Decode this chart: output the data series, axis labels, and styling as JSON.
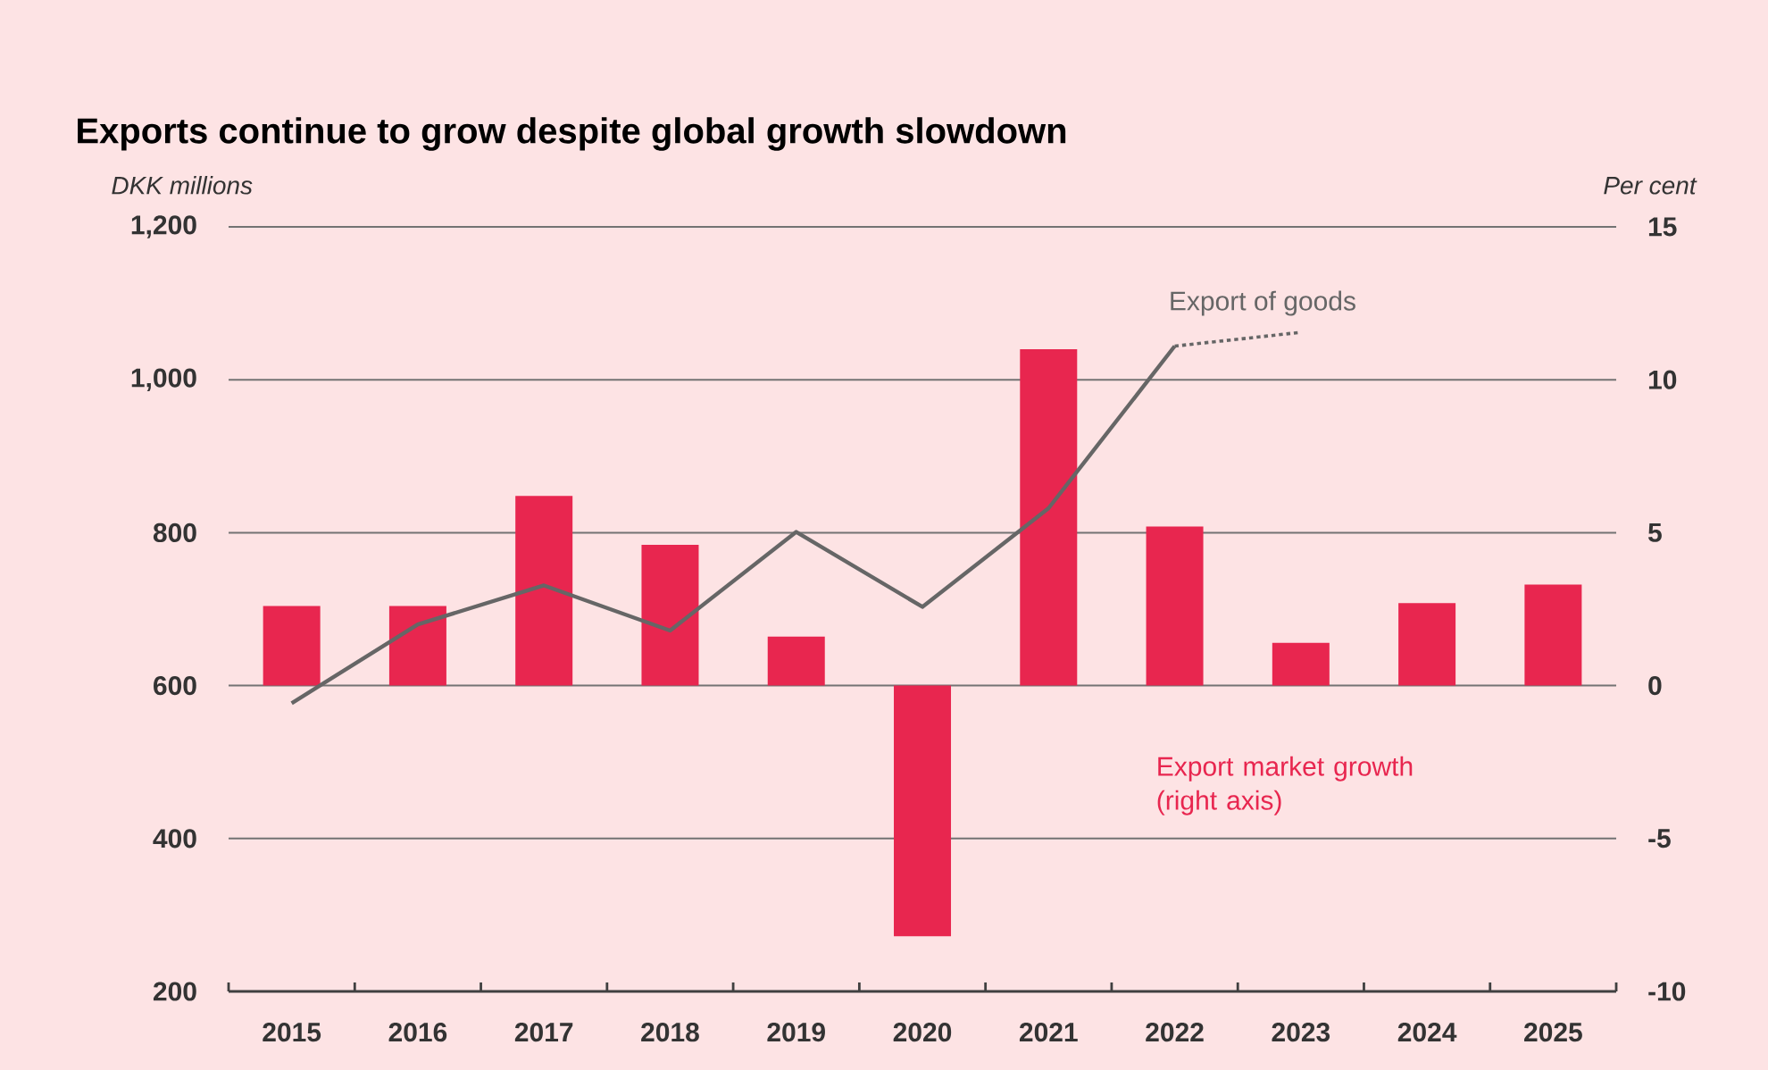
{
  "chart_data": {
    "type": "bar",
    "title": "Exports continue to grow despite global growth slowdown",
    "ylabel": "DKK millions",
    "y2label": "Per cent",
    "categories": [
      "2015",
      "2016",
      "2017",
      "2018",
      "2019",
      "2020",
      "2021",
      "2022",
      "2023",
      "2024",
      "2025"
    ],
    "series": [
      {
        "name": "Export market growth (right axis)",
        "axis": "y2",
        "color": "#e8264f",
        "values": [
          2.6,
          2.6,
          6.2,
          4.6,
          1.6,
          -8.2,
          11.0,
          5.2,
          1.4,
          2.7,
          3.3
        ]
      },
      {
        "name": "Export of goods",
        "type": "line",
        "color": "#666666",
        "line_style": "solid",
        "values": [
          577,
          680,
          731,
          672,
          801,
          703,
          832,
          1044,
          null,
          null,
          null
        ]
      },
      {
        "type": "line",
        "color": "#666666",
        "line_style": "dotted",
        "values": [
          null,
          null,
          null,
          null,
          null,
          null,
          null,
          1044,
          1062,
          null,
          null
        ]
      }
    ],
    "ylim": [
      200,
      1200
    ],
    "yticks": [
      200,
      400,
      600,
      800,
      {
        "value": 1000,
        "label": "1,000"
      },
      {
        "value": 1200,
        "label": "1,200"
      }
    ],
    "y2lim": [
      -10,
      15
    ],
    "y2ticks": [
      -10,
      -5,
      0,
      5,
      10,
      15
    ],
    "grid": "y"
  }
}
